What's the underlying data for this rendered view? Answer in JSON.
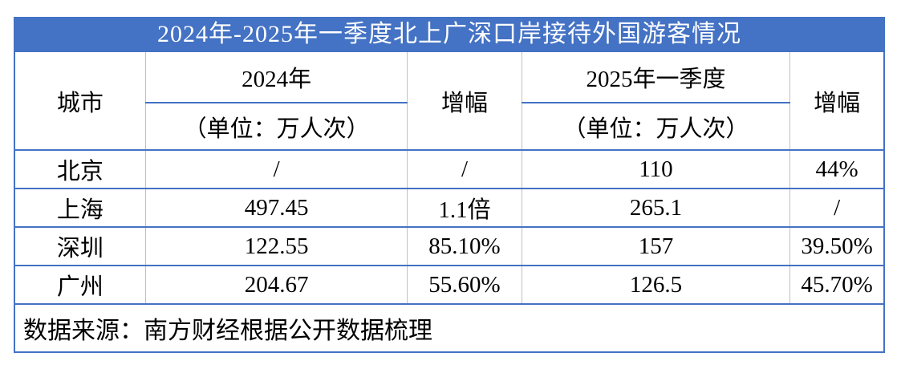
{
  "title": "2024年-2025年一季度北上广深口岸接待外国游客情况",
  "colors": {
    "accent_blue": "#4472C4",
    "grid_gray": "#C0C0C0",
    "title_text": "#FFFFFF",
    "body_text": "#000000"
  },
  "table": {
    "header": {
      "city": "城市",
      "col_2024": "2024年",
      "col_2024_unit": "（单位：万人次）",
      "growth_2024": "增幅",
      "col_2025": "2025年一季度",
      "col_2025_unit": "（单位：万人次）",
      "growth_2025": "增幅"
    },
    "rows": [
      {
        "city": "北京",
        "v2024": "/",
        "g2024": "/",
        "v2025": "110",
        "g2025": "44%"
      },
      {
        "city": "上海",
        "v2024": "497.45",
        "g2024": "1.1倍",
        "v2025": "265.1",
        "g2025": "/"
      },
      {
        "city": "深圳",
        "v2024": "122.55",
        "g2024": "85.10%",
        "v2025": "157",
        "g2025": "39.50%"
      },
      {
        "city": "广州",
        "v2024": "204.67",
        "g2024": "55.60%",
        "v2025": "126.5",
        "g2025": "45.70%"
      }
    ],
    "source": "数据来源：南方财经根据公开数据梳理"
  },
  "chart_data": {
    "type": "table",
    "title": "2024年-2025年一季度北上广深口岸接待外国游客情况",
    "columns": [
      "城市",
      "2024年（单位：万人次）",
      "增幅",
      "2025年一季度（单位：万人次）",
      "增幅"
    ],
    "rows": [
      [
        "北京",
        "/",
        "/",
        "110",
        "44%"
      ],
      [
        "上海",
        "497.45",
        "1.1倍",
        "265.1",
        "/"
      ],
      [
        "深圳",
        "122.55",
        "85.10%",
        "157",
        "39.50%"
      ],
      [
        "广州",
        "204.67",
        "55.60%",
        "126.5",
        "45.70%"
      ]
    ],
    "source": "数据来源：南方财经根据公开数据梳理"
  }
}
